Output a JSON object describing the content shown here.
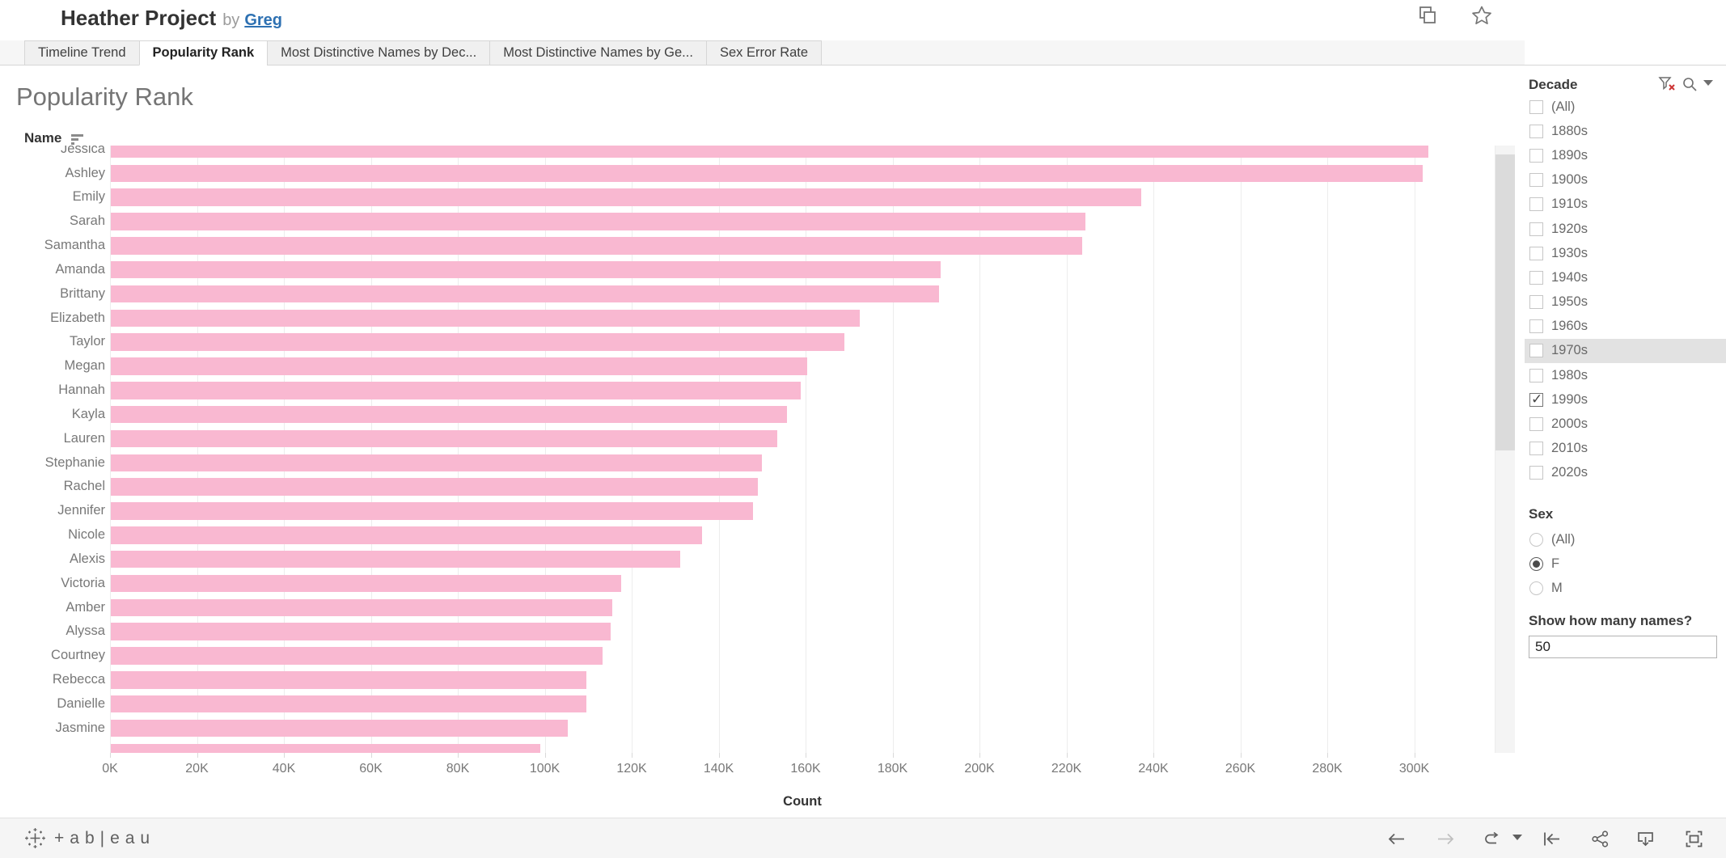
{
  "header": {
    "title": "Heather Project",
    "by_label": "by",
    "author": "Greg",
    "icons": [
      "duplicate-icon",
      "star-favorite-icon",
      "share-icon",
      "download-icon",
      "award-badge-icon"
    ]
  },
  "tabs": {
    "items": [
      {
        "label": "Timeline Trend",
        "active": false
      },
      {
        "label": "Popularity Rank",
        "active": true
      },
      {
        "label": "Most Distinctive Names by Dec...",
        "active": false
      },
      {
        "label": "Most Distinctive Names by Ge...",
        "active": false
      },
      {
        "label": "Sex Error Rate",
        "active": false
      }
    ]
  },
  "sheet": {
    "title": "Popularity Rank",
    "row_header": "Name"
  },
  "chart_data": {
    "type": "bar",
    "orientation": "horizontal",
    "title": "Popularity Rank",
    "xlabel": "Count",
    "ylabel": "Name",
    "sort": "descending by count",
    "bar_color": "#f9b8d1",
    "xlim": [
      0,
      318000
    ],
    "x_ticks": [
      "0K",
      "20K",
      "40K",
      "60K",
      "80K",
      "100K",
      "120K",
      "140K",
      "160K",
      "180K",
      "200K",
      "220K",
      "240K",
      "260K",
      "280K",
      "300K"
    ],
    "grid": true,
    "categories": [
      "Jessica",
      "Ashley",
      "Emily",
      "Sarah",
      "Samantha",
      "Amanda",
      "Brittany",
      "Elizabeth",
      "Taylor",
      "Megan",
      "Hannah",
      "Kayla",
      "Lauren",
      "Stephanie",
      "Rachel",
      "Jennifer",
      "Nicole",
      "Alexis",
      "Victoria",
      "Amber",
      "Alyssa",
      "Courtney",
      "Rebecca",
      "Danielle",
      "Jasmine"
    ],
    "values": [
      303100,
      301700,
      237000,
      224100,
      223500,
      190900,
      190500,
      172300,
      168700,
      160200,
      158700,
      155600,
      153300,
      149800,
      148800,
      147700,
      136000,
      131000,
      117400,
      115300,
      115000,
      113100,
      109400,
      109400,
      105100
    ],
    "partial_next_value": 98800,
    "first_row_clipped": true
  },
  "decade_filter": {
    "title": "Decade",
    "icons": [
      "filter-clear-icon",
      "search-icon",
      "caret-down-icon"
    ],
    "options": [
      "(All)",
      "1880s",
      "1890s",
      "1900s",
      "1910s",
      "1920s",
      "1930s",
      "1940s",
      "1950s",
      "1960s",
      "1970s",
      "1980s",
      "1990s",
      "2000s",
      "2010s",
      "2020s"
    ],
    "checked": [
      "1990s"
    ],
    "highlighted": "1970s"
  },
  "sex_filter": {
    "title": "Sex",
    "options": [
      "(All)",
      "F",
      "M"
    ],
    "selected": "F"
  },
  "names_input": {
    "label": "Show how many names?",
    "value": "50"
  },
  "toolbar": {
    "logo_text": "+ab|eau",
    "icons": [
      "undo-icon",
      "redo-icon",
      "replay-icon",
      "caret-down-icon",
      "revert-icon",
      "share-icon",
      "download-icon",
      "fullscreen-icon"
    ]
  }
}
